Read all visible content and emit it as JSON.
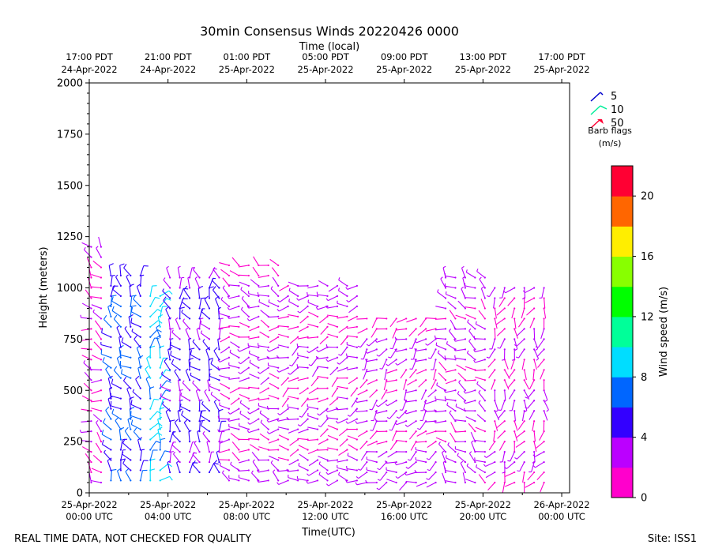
{
  "chart_data": {
    "type": "scatter",
    "subtype": "wind-barbs",
    "title": "30min Consensus Winds 20220426 0000",
    "top_axis_label": "Time (local)",
    "xlabel": "Time(UTC)",
    "ylabel": "Height (meters)",
    "xlim_hours": [
      0,
      24.4
    ],
    "ylim": [
      0,
      2000
    ],
    "y_ticks": [
      0,
      250,
      500,
      750,
      1000,
      1250,
      1500,
      1750,
      2000
    ],
    "y_tick_labels": [
      "0",
      "250",
      "500",
      "750",
      "1000",
      "1250",
      "1500",
      "1750",
      "2000"
    ],
    "bottom_ticks": [
      {
        "hour": 0,
        "line1": "25-Apr-2022",
        "line2": "00:00 UTC"
      },
      {
        "hour": 4,
        "line1": "25-Apr-2022",
        "line2": "04:00 UTC"
      },
      {
        "hour": 8,
        "line1": "25-Apr-2022",
        "line2": "08:00 UTC"
      },
      {
        "hour": 12,
        "line1": "25-Apr-2022",
        "line2": "12:00 UTC"
      },
      {
        "hour": 16,
        "line1": "25-Apr-2022",
        "line2": "16:00 UTC"
      },
      {
        "hour": 20,
        "line1": "25-Apr-2022",
        "line2": "20:00 UTC"
      },
      {
        "hour": 24,
        "line1": "26-Apr-2022",
        "line2": "00:00 UTC"
      }
    ],
    "top_ticks": [
      {
        "hour": 0,
        "line1": "17:00 PDT",
        "line2": "24-Apr-2022"
      },
      {
        "hour": 4,
        "line1": "21:00 PDT",
        "line2": "24-Apr-2022"
      },
      {
        "hour": 8,
        "line1": "01:00 PDT",
        "line2": "25-Apr-2022"
      },
      {
        "hour": 12,
        "line1": "05:00 PDT",
        "line2": "25-Apr-2022"
      },
      {
        "hour": 16,
        "line1": "09:00 PDT",
        "line2": "25-Apr-2022"
      },
      {
        "hour": 20,
        "line1": "13:00 PDT",
        "line2": "25-Apr-2022"
      },
      {
        "hour": 24,
        "line1": "17:00 PDT",
        "line2": "25-Apr-2022"
      }
    ],
    "legend": {
      "entries": [
        {
          "label": "5",
          "color": "#0000cc"
        },
        {
          "label": "10",
          "color": "#00ee99"
        },
        {
          "label": "50",
          "color": "#ff0033"
        }
      ],
      "title_line1": "Barb flags",
      "title_line2": "(m/s)",
      "position": "top-right"
    },
    "colorbar": {
      "label": "Wind speed (m/s)",
      "min": 0,
      "max": 22,
      "ticks": [
        0,
        4,
        8,
        12,
        16,
        20
      ],
      "tick_labels": [
        "0",
        "4",
        "8",
        "12",
        "16",
        "20"
      ],
      "colors": [
        "#ff00cc",
        "#bb00ff",
        "#3300ff",
        "#0066ff",
        "#00ddff",
        "#00ff99",
        "#00ff00",
        "#88ff00",
        "#ffee00",
        "#ff6600",
        "#ff0033"
      ]
    },
    "regimes": [
      {
        "t_start": 0.0,
        "t_end": 0.8,
        "h_min": 50,
        "h_max": 1200,
        "speed": 1.5,
        "dir": 300
      },
      {
        "t_start": 0.8,
        "t_end": 3.0,
        "h_min": 60,
        "h_max": 1100,
        "speed": 6.0,
        "dir": 330
      },
      {
        "t_start": 3.0,
        "t_end": 4.0,
        "h_min": 60,
        "h_max": 1000,
        "speed": 8.5,
        "dir": 20
      },
      {
        "t_start": 4.0,
        "t_end": 7.0,
        "h_min": 100,
        "h_max": 1050,
        "speed": 4.5,
        "dir": 340
      },
      {
        "t_start": 7.0,
        "t_end": 10.0,
        "h_min": 60,
        "h_max": 1150,
        "speed": 2.5,
        "dir": 280
      },
      {
        "t_start": 10.0,
        "t_end": 14.0,
        "h_min": 60,
        "h_max": 1050,
        "speed": 2.0,
        "dir": 260
      },
      {
        "t_start": 14.0,
        "t_end": 18.0,
        "h_min": 50,
        "h_max": 850,
        "speed": 2.5,
        "dir": 240
      },
      {
        "t_start": 18.0,
        "t_end": 20.5,
        "h_min": 50,
        "h_max": 1050,
        "speed": 2.8,
        "dir": 300
      },
      {
        "t_start": 20.5,
        "t_end": 23.5,
        "h_min": 50,
        "h_max": 1000,
        "speed": 1.8,
        "dir": 200
      }
    ]
  },
  "footer": {
    "disclaimer": "REAL TIME DATA, NOT CHECKED FOR QUALITY",
    "site": "Site: ISS1"
  }
}
